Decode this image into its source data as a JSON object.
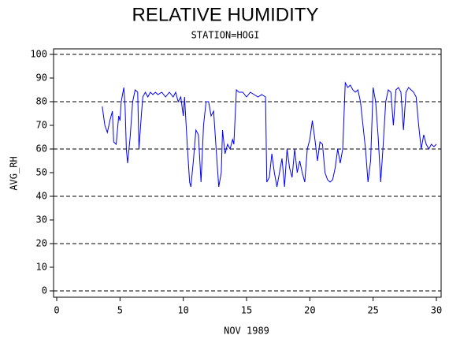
{
  "chart_data": {
    "type": "line",
    "title": "RELATIVE HUMIDITY",
    "subtitle": "STATION=HOGI",
    "x_label": "NOV 1989",
    "y_label": "AVG_RH",
    "color": "#0000ff",
    "xlim": [
      0,
      30
    ],
    "xticks": [
      0,
      5,
      10,
      15,
      20,
      25,
      30
    ],
    "ylim": [
      0,
      100
    ],
    "yticks": [
      0,
      10,
      20,
      30,
      40,
      50,
      60,
      70,
      80,
      90,
      100
    ],
    "ygrid": [
      0,
      20,
      40,
      60,
      80,
      100
    ],
    "x": [
      3.6,
      3.8,
      4.0,
      4.2,
      4.4,
      4.5,
      4.7,
      4.9,
      5.0,
      5.1,
      5.3,
      5.4,
      5.5,
      5.6,
      5.8,
      6.0,
      6.2,
      6.4,
      6.5,
      6.7,
      6.8,
      7.0,
      7.2,
      7.4,
      7.6,
      7.8,
      8.0,
      8.3,
      8.6,
      8.9,
      9.2,
      9.4,
      9.6,
      9.8,
      10.0,
      10.1,
      10.3,
      10.5,
      10.6,
      10.8,
      11.0,
      11.2,
      11.4,
      11.6,
      11.8,
      12.0,
      12.2,
      12.4,
      12.6,
      12.8,
      13.0,
      13.1,
      13.3,
      13.5,
      13.7,
      13.9,
      14.0,
      14.2,
      14.4,
      14.7,
      15.0,
      15.3,
      15.6,
      15.9,
      16.2,
      16.5,
      16.6,
      16.8,
      17.0,
      17.2,
      17.4,
      17.6,
      17.8,
      18.0,
      18.2,
      18.4,
      18.6,
      18.8,
      19.0,
      19.2,
      19.4,
      19.6,
      19.8,
      20.0,
      20.2,
      20.4,
      20.6,
      20.8,
      21.0,
      21.2,
      21.4,
      21.6,
      21.8,
      22.0,
      22.2,
      22.4,
      22.6,
      22.8,
      23.0,
      23.2,
      23.4,
      23.6,
      23.8,
      24.0,
      24.2,
      24.4,
      24.6,
      24.8,
      25.0,
      25.2,
      25.4,
      25.6,
      25.8,
      26.0,
      26.2,
      26.4,
      26.6,
      26.8,
      27.0,
      27.2,
      27.4,
      27.6,
      27.8,
      28.0,
      28.2,
      28.4,
      28.6,
      28.8,
      29.0,
      29.2,
      29.4,
      29.6,
      29.8,
      30.0
    ],
    "values": [
      78,
      70,
      67,
      72,
      76,
      63,
      62,
      74,
      72,
      80,
      86,
      78,
      60,
      54,
      65,
      80,
      85,
      84,
      60,
      75,
      82,
      84,
      82,
      84,
      83,
      84,
      83,
      84,
      82,
      84,
      82,
      84,
      80,
      82,
      74,
      82,
      63,
      46,
      44,
      55,
      68,
      66,
      46,
      70,
      80,
      80,
      74,
      76,
      60,
      44,
      50,
      68,
      58,
      62,
      60,
      64,
      62,
      85,
      84,
      84,
      82,
      84,
      83,
      82,
      83,
      82,
      46,
      48,
      58,
      50,
      44,
      50,
      56,
      44,
      60,
      52,
      48,
      60,
      50,
      55,
      50,
      46,
      60,
      64,
      72,
      64,
      55,
      63,
      62,
      50,
      47,
      46,
      47,
      52,
      60,
      54,
      60,
      88,
      86,
      87,
      85,
      84,
      85,
      80,
      70,
      60,
      46,
      55,
      86,
      80,
      65,
      46,
      62,
      80,
      85,
      84,
      70,
      85,
      86,
      84,
      68,
      84,
      86,
      85,
      84,
      82,
      70,
      60,
      66,
      62,
      60,
      62,
      61,
      62
    ]
  }
}
